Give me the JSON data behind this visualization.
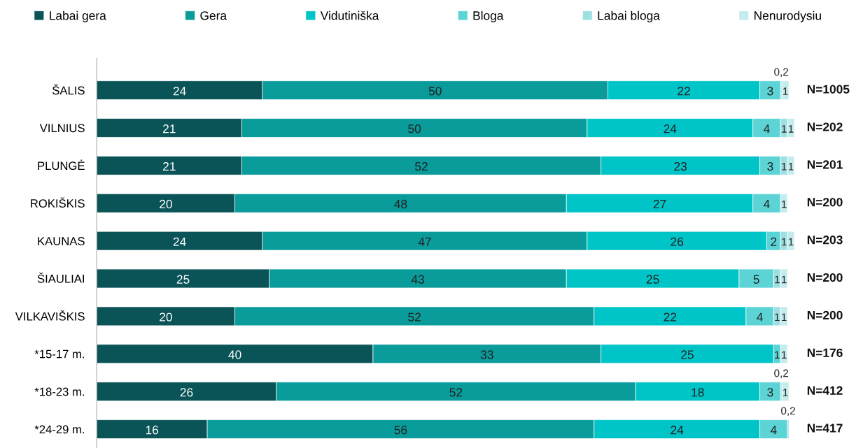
{
  "chart_data": {
    "type": "bar",
    "orientation": "horizontal",
    "stacked": true,
    "legend": "top",
    "grid": false,
    "categories": [
      "ŠALIS",
      "VILNIUS",
      "PLUNGĖ",
      "ROKIŠKIS",
      "KAUNAS",
      "ŠIAULIAI",
      "VILKAVIŠKIS",
      "*15-17 m.",
      "*18-23 m.",
      "*24-29 m."
    ],
    "series": [
      {
        "name": "Labai gera",
        "color": "#0a5458",
        "values": [
          24,
          21,
          21,
          20,
          24,
          25,
          20,
          40,
          26,
          16
        ],
        "value_labels": [
          "24",
          "21",
          "21",
          "20",
          "24",
          "25",
          "20",
          "40",
          "26",
          "16"
        ]
      },
      {
        "name": "Gera",
        "color": "#0a9b9b",
        "values": [
          50,
          50,
          52,
          48,
          47,
          43,
          52,
          33,
          52,
          56
        ],
        "value_labels": [
          "50",
          "50",
          "52",
          "48",
          "47",
          "43",
          "52",
          "33",
          "52",
          "56"
        ]
      },
      {
        "name": "Vidutiniška",
        "color": "#00c5c8",
        "values": [
          22,
          24,
          23,
          27,
          26,
          25,
          22,
          25,
          18,
          24
        ],
        "value_labels": [
          "22",
          "24",
          "23",
          "27",
          "26",
          "25",
          "22",
          "25",
          "18",
          "24"
        ]
      },
      {
        "name": "Bloga",
        "color": "#5cd4d6",
        "values": [
          3,
          4,
          3,
          4,
          2,
          5,
          4,
          1,
          3,
          4
        ],
        "value_labels": [
          "3",
          "4",
          "3",
          "4",
          "2",
          "5",
          "4",
          "1",
          "3",
          "4"
        ]
      },
      {
        "name": "Labai bloga",
        "color": "#9ee0e2",
        "values": [
          0.2,
          1,
          1,
          null,
          1,
          1,
          1,
          null,
          0.2,
          0.2
        ],
        "value_labels": [
          "0,2",
          "1",
          "1",
          null,
          "1",
          "1",
          "1",
          null,
          "0,2",
          "0,2"
        ]
      },
      {
        "name": "Nenurodysiu",
        "color": "#c5eced",
        "values": [
          1,
          1,
          1,
          1,
          1,
          1,
          1,
          1,
          1,
          null
        ],
        "value_labels": [
          "1",
          "1",
          "1",
          "1",
          "1",
          "1",
          "1",
          "1",
          "1",
          null
        ]
      }
    ],
    "annotations": [
      "N=1005",
      "N=202",
      "N=201",
      "N=200",
      "N=203",
      "N=200",
      "N=200",
      "N=176",
      "N=412",
      "N=417"
    ]
  }
}
